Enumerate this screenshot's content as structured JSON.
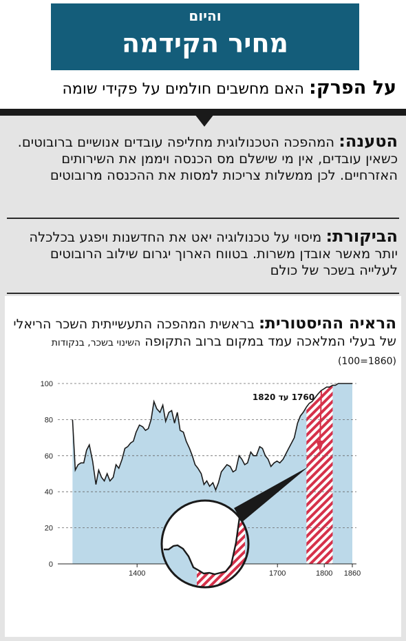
{
  "header": {
    "kicker": "והיום",
    "title": "מחיר הקידמה"
  },
  "subject": {
    "label": "על הפרק:",
    "text": "האם מחשבים חולמים על פקידי שומה"
  },
  "claim": {
    "label": "הטענה:",
    "text": "המהפכה הטכנולוגית מחליפה עובדים אנושיים ברובוטים. כשאין עובדים, אין מי שישלם מס הכנסה ויממן את השירותים האזרחיים. לכן ממשלות צריכות למסות את ההכנסה מרובוטים"
  },
  "criticism": {
    "label": "הביקורת:",
    "text": "מיסוי על טכנולוגיה יאט את החדשנות ויפגע בכלכלה יותר מאשר אובדן משרות. בטווח הארוך יגרום שילוב הרובוטים לעלייה בשכר של כולם"
  },
  "chart_title": {
    "label": "הראיה ההיסטורית:",
    "text": "בראשית המהפכה התעשייתית השכר הריאלי של בעלי המלאכה עמד במקום ברוב התקופה",
    "unit": "השינוי בשכר, בנקודות (1860=100)"
  },
  "chart_data": {
    "type": "area",
    "title": "הראיה ההיסטורית",
    "ylabel": "השינוי בשכר, בנקודות (1860=100)",
    "xlabel": "",
    "xlim": [
      1260,
      1860
    ],
    "ylim": [
      0,
      100
    ],
    "yticks": [
      0,
      20,
      40,
      60,
      80,
      100
    ],
    "xticks": [
      1400,
      1700,
      1800,
      1860
    ],
    "grid": "horizontal dashed",
    "series": [
      {
        "x": [
          1262,
          1268,
          1274,
          1280,
          1286,
          1292,
          1298,
          1305,
          1312,
          1318,
          1324,
          1330,
          1336,
          1342,
          1349,
          1355,
          1361,
          1368,
          1374,
          1380,
          1386,
          1392,
          1398,
          1405,
          1412,
          1418,
          1424,
          1430,
          1436,
          1442,
          1449,
          1455,
          1461,
          1468,
          1474,
          1480,
          1486,
          1492,
          1499,
          1505,
          1512,
          1518,
          1524,
          1530,
          1537,
          1543,
          1549,
          1555,
          1562,
          1568,
          1574,
          1580,
          1586,
          1592,
          1599,
          1605,
          1611,
          1618,
          1624,
          1630,
          1636,
          1643,
          1649,
          1655,
          1662,
          1668,
          1674,
          1680,
          1686,
          1693,
          1699,
          1705,
          1712,
          1718,
          1724,
          1730,
          1736,
          1743,
          1749,
          1755,
          1762,
          1768,
          1774,
          1780,
          1786,
          1793,
          1799,
          1805,
          1811,
          1818,
          1824,
          1830,
          1836,
          1843,
          1849,
          1855,
          1860
        ],
        "values": [
          80,
          52,
          55,
          56,
          56,
          63,
          66,
          57,
          44,
          52,
          48,
          46,
          50,
          46,
          48,
          55,
          53,
          58,
          64,
          65,
          67,
          68,
          73,
          77,
          76,
          74,
          75,
          80,
          90,
          86,
          84,
          88,
          79,
          84,
          85,
          78,
          84,
          74,
          73,
          68,
          64,
          60,
          55,
          53,
          50,
          44,
          46,
          43,
          45,
          41,
          45,
          51,
          53,
          55,
          54,
          51,
          52,
          60,
          58,
          55,
          56,
          62,
          60,
          60,
          65,
          64,
          60,
          58,
          54,
          56,
          57,
          56,
          58,
          61,
          64,
          67,
          70,
          78,
          82,
          84,
          87,
          89,
          90,
          92,
          94,
          96,
          97,
          98,
          98,
          99,
          99,
          100,
          100,
          100,
          100,
          100,
          100
        ]
      }
    ],
    "hatched_period_label": "1760 עד 1820",
    "hatched_period": [
      1760,
      1820
    ]
  },
  "colors": {
    "header_bg": "#145d7a",
    "area_fill": "#bcd9e9",
    "hatch": "#d6314a",
    "arrow": "#d6314a"
  }
}
